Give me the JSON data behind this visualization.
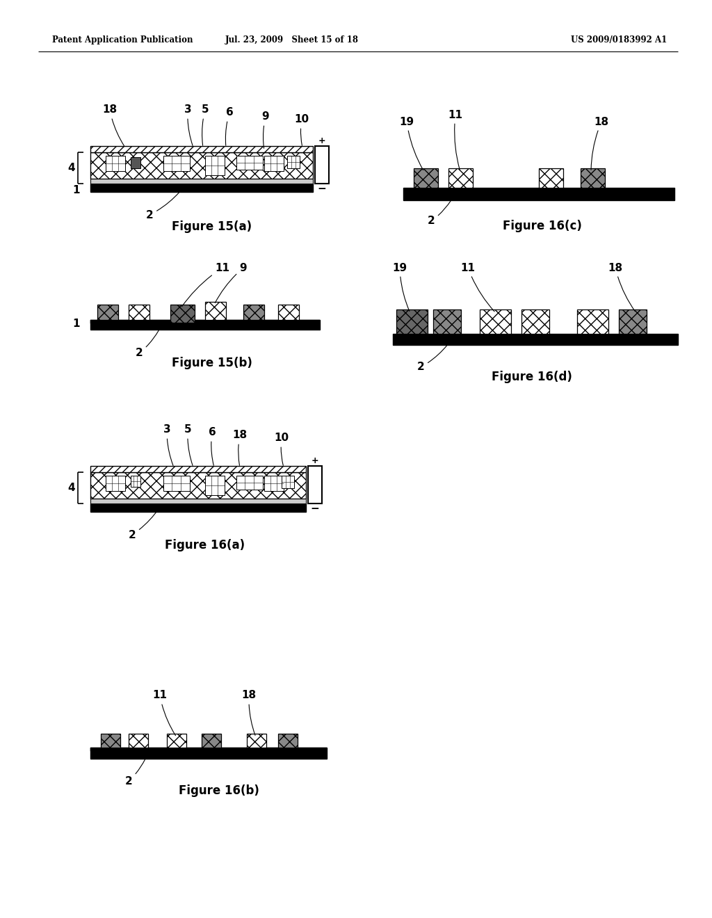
{
  "header_left": "Patent Application Publication",
  "header_mid": "Jul. 23, 2009   Sheet 15 of 18",
  "header_right": "US 2009/0183992 A1",
  "bg_color": "#ffffff"
}
